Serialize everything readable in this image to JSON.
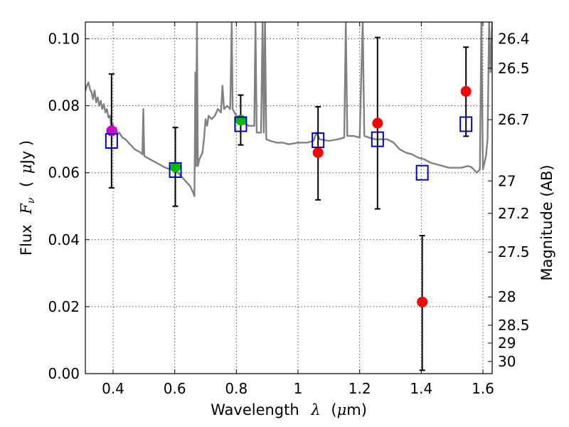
{
  "chart_data": {
    "type": "scatter",
    "xlabel": "Wavelength",
    "xlabel_symbol": "λ",
    "xlabel_unit_open": "(",
    "xlabel_unit_mu": "μ",
    "xlabel_unit_rest": "m)",
    "ylabel_prefix": "Flux",
    "ylabel_symbol": "F",
    "ylabel_subscript": "ν",
    "ylabel_unit_open": "(",
    "ylabel_unit_mu": "μ",
    "ylabel_unit_rest": "Jy )",
    "y2label": "Magnitude (AB)",
    "xlim": [
      0.31,
      1.63
    ],
    "ylim": [
      0.0,
      0.105
    ],
    "x_ticks": [
      {
        "v": 0.4,
        "label": "0.4"
      },
      {
        "v": 0.6,
        "label": "0.6"
      },
      {
        "v": 0.8,
        "label": "0.8"
      },
      {
        "v": 1.0,
        "label": "1"
      },
      {
        "v": 1.2,
        "label": "1.2"
      },
      {
        "v": 1.4,
        "label": "1.4"
      },
      {
        "v": 1.6,
        "label": "1.6"
      }
    ],
    "y_ticks": [
      {
        "v": 0.0,
        "label": "0.00"
      },
      {
        "v": 0.02,
        "label": "0.02"
      },
      {
        "v": 0.04,
        "label": "0.04"
      },
      {
        "v": 0.06,
        "label": "0.06"
      },
      {
        "v": 0.08,
        "label": "0.08"
      },
      {
        "v": 0.1,
        "label": "0.10"
      }
    ],
    "mag_ticks": [
      {
        "mag": 26.4,
        "label": "26.4"
      },
      {
        "mag": 26.5,
        "label": "26.5"
      },
      {
        "mag": 26.7,
        "label": "26.7"
      },
      {
        "mag": 27,
        "label": "27"
      },
      {
        "mag": 27.2,
        "label": "27.2"
      },
      {
        "mag": 27.5,
        "label": "27.5"
      },
      {
        "mag": 28,
        "label": "28"
      },
      {
        "mag": 28.5,
        "label": "28.5"
      },
      {
        "mag": 29,
        "label": "29"
      },
      {
        "mag": 30,
        "label": "30"
      }
    ],
    "observed": [
      {
        "x": 0.395,
        "y": 0.0725,
        "err_low": 0.0555,
        "err_high": 0.0895,
        "color": "#cc00cc"
      },
      {
        "x": 0.602,
        "y": 0.0617,
        "err_low": 0.05,
        "err_high": 0.0735,
        "color": "#00bb00"
      },
      {
        "x": 0.814,
        "y": 0.0757,
        "err_low": 0.0683,
        "err_high": 0.0832,
        "color": "#00bb00"
      },
      {
        "x": 1.065,
        "y": 0.066,
        "err_low": 0.0519,
        "err_high": 0.0797,
        "color": "#ff0000"
      },
      {
        "x": 1.258,
        "y": 0.0748,
        "err_low": 0.0492,
        "err_high": 0.1004,
        "color": "#ff0000"
      },
      {
        "x": 1.403,
        "y": 0.0214,
        "err_low": 0.001,
        "err_high": 0.0412,
        "color": "#ff0000"
      },
      {
        "x": 1.545,
        "y": 0.0843,
        "err_low": 0.0709,
        "err_high": 0.0975,
        "color": "#ff0000"
      }
    ],
    "model_points": [
      {
        "x": 0.395,
        "y": 0.0695
      },
      {
        "x": 0.602,
        "y": 0.0608
      },
      {
        "x": 0.814,
        "y": 0.0745
      },
      {
        "x": 1.065,
        "y": 0.0697
      },
      {
        "x": 1.258,
        "y": 0.07
      },
      {
        "x": 1.403,
        "y": 0.06
      },
      {
        "x": 1.545,
        "y": 0.0745
      }
    ],
    "sed_spectrum": [
      [
        0.31,
        0.0845
      ],
      [
        0.315,
        0.086
      ],
      [
        0.32,
        0.087
      ],
      [
        0.325,
        0.085
      ],
      [
        0.33,
        0.084
      ],
      [
        0.335,
        0.082
      ],
      [
        0.34,
        0.0845
      ],
      [
        0.345,
        0.081
      ],
      [
        0.35,
        0.0825
      ],
      [
        0.355,
        0.08
      ],
      [
        0.36,
        0.0815
      ],
      [
        0.365,
        0.079
      ],
      [
        0.37,
        0.0805
      ],
      [
        0.375,
        0.078
      ],
      [
        0.38,
        0.079
      ],
      [
        0.385,
        0.0765
      ],
      [
        0.39,
        0.077
      ],
      [
        0.395,
        0.073
      ],
      [
        0.4,
        0.0745
      ],
      [
        0.405,
        0.072
      ],
      [
        0.41,
        0.0735
      ],
      [
        0.415,
        0.0715
      ],
      [
        0.42,
        0.072
      ],
      [
        0.43,
        0.0705
      ],
      [
        0.44,
        0.07
      ],
      [
        0.45,
        0.069
      ],
      [
        0.46,
        0.068
      ],
      [
        0.47,
        0.067
      ],
      [
        0.48,
        0.0665
      ],
      [
        0.49,
        0.066
      ],
      [
        0.495,
        0.0655
      ],
      [
        0.498,
        0.079
      ],
      [
        0.501,
        0.065
      ],
      [
        0.51,
        0.0645
      ],
      [
        0.52,
        0.064
      ],
      [
        0.53,
        0.0635
      ],
      [
        0.54,
        0.063
      ],
      [
        0.55,
        0.0625
      ],
      [
        0.56,
        0.062
      ],
      [
        0.57,
        0.0615
      ],
      [
        0.58,
        0.0612
      ],
      [
        0.59,
        0.061
      ],
      [
        0.6,
        0.0608
      ],
      [
        0.61,
        0.06
      ],
      [
        0.62,
        0.059
      ],
      [
        0.63,
        0.058
      ],
      [
        0.64,
        0.057
      ],
      [
        0.65,
        0.056
      ],
      [
        0.655,
        0.055
      ],
      [
        0.66,
        0.054
      ],
      [
        0.664,
        0.053
      ],
      [
        0.667,
        0.09
      ],
      [
        0.669,
        0.062
      ],
      [
        0.672,
        0.105
      ],
      [
        0.675,
        0.062
      ],
      [
        0.68,
        0.064
      ],
      [
        0.69,
        0.066
      ],
      [
        0.695,
        0.07
      ],
      [
        0.7,
        0.076
      ],
      [
        0.705,
        0.074
      ],
      [
        0.71,
        0.077
      ],
      [
        0.72,
        0.076
      ],
      [
        0.73,
        0.077
      ],
      [
        0.74,
        0.079
      ],
      [
        0.75,
        0.078
      ],
      [
        0.755,
        0.086
      ],
      [
        0.76,
        0.079
      ],
      [
        0.77,
        0.08
      ],
      [
        0.78,
        0.079
      ],
      [
        0.785,
        0.105
      ],
      [
        0.788,
        0.079
      ],
      [
        0.8,
        0.077
      ],
      [
        0.81,
        0.076
      ],
      [
        0.82,
        0.075
      ],
      [
        0.83,
        0.0745
      ],
      [
        0.84,
        0.074
      ],
      [
        0.85,
        0.074
      ],
      [
        0.858,
        0.074
      ],
      [
        0.862,
        0.105
      ],
      [
        0.866,
        0.072
      ],
      [
        0.875,
        0.072
      ],
      [
        0.88,
        0.072
      ],
      [
        0.885,
        0.105
      ],
      [
        0.889,
        0.072
      ],
      [
        0.893,
        0.105
      ],
      [
        0.897,
        0.07
      ],
      [
        0.91,
        0.0695
      ],
      [
        0.93,
        0.069
      ],
      [
        0.95,
        0.069
      ],
      [
        0.97,
        0.0685
      ],
      [
        1.0,
        0.069
      ],
      [
        1.03,
        0.069
      ],
      [
        1.05,
        0.0695
      ],
      [
        1.06,
        0.072
      ],
      [
        1.07,
        0.07
      ],
      [
        1.1,
        0.0695
      ],
      [
        1.13,
        0.07
      ],
      [
        1.15,
        0.0705
      ],
      [
        1.155,
        0.105
      ],
      [
        1.16,
        0.071
      ],
      [
        1.18,
        0.071
      ],
      [
        1.2,
        0.0705
      ],
      [
        1.21,
        0.105
      ],
      [
        1.215,
        0.071
      ],
      [
        1.23,
        0.0705
      ],
      [
        1.25,
        0.07
      ],
      [
        1.27,
        0.07
      ],
      [
        1.29,
        0.07
      ],
      [
        1.31,
        0.069
      ],
      [
        1.33,
        0.067
      ],
      [
        1.35,
        0.066
      ],
      [
        1.37,
        0.0655
      ],
      [
        1.39,
        0.0645
      ],
      [
        1.41,
        0.064
      ],
      [
        1.43,
        0.063
      ],
      [
        1.45,
        0.0625
      ],
      [
        1.47,
        0.062
      ],
      [
        1.49,
        0.0615
      ],
      [
        1.51,
        0.0615
      ],
      [
        1.53,
        0.0615
      ],
      [
        1.55,
        0.062
      ],
      [
        1.56,
        0.0618
      ],
      [
        1.57,
        0.061
      ],
      [
        1.58,
        0.06
      ],
      [
        1.59,
        0.061
      ],
      [
        1.595,
        0.105
      ],
      [
        1.6,
        0.061
      ],
      [
        1.605,
        0.063
      ],
      [
        1.61,
        0.065
      ],
      [
        1.615,
        0.07
      ],
      [
        1.62,
        0.105
      ],
      [
        1.625,
        0.09
      ],
      [
        1.63,
        0.105
      ]
    ],
    "colors": {
      "spectrum": "#808080",
      "model_marker": "#0000cc",
      "errorbar": "#000000"
    }
  }
}
